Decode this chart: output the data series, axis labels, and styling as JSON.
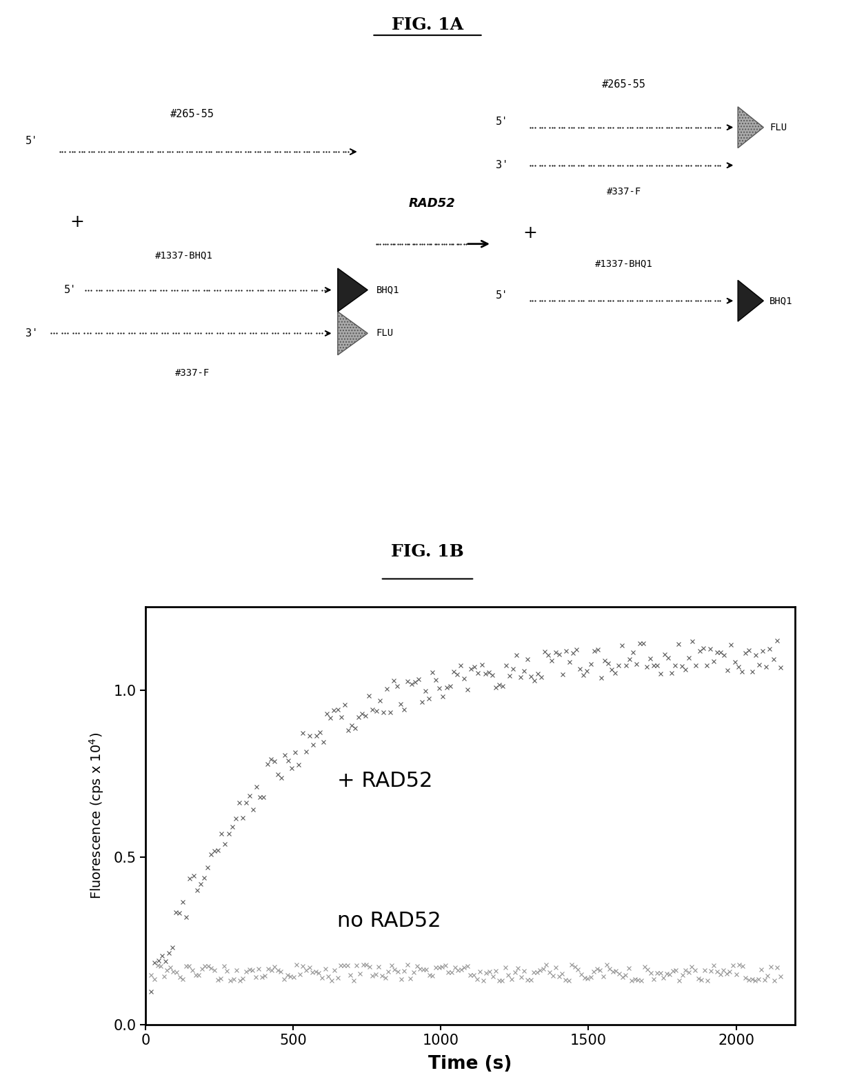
{
  "fig1a_title": "FIG. 1A",
  "fig1b_title": "FIG. 1B",
  "xlabel": "Time (s)",
  "yticks": [
    0.0,
    0.5,
    1.0
  ],
  "xticks": [
    0,
    500,
    1000,
    1500,
    2000
  ],
  "xlim": [
    0,
    2200
  ],
  "ylim": [
    0.0,
    1.25
  ],
  "label_rad52": "+ RAD52",
  "label_norad52": "no RAD52",
  "bg_color": "#ffffff"
}
